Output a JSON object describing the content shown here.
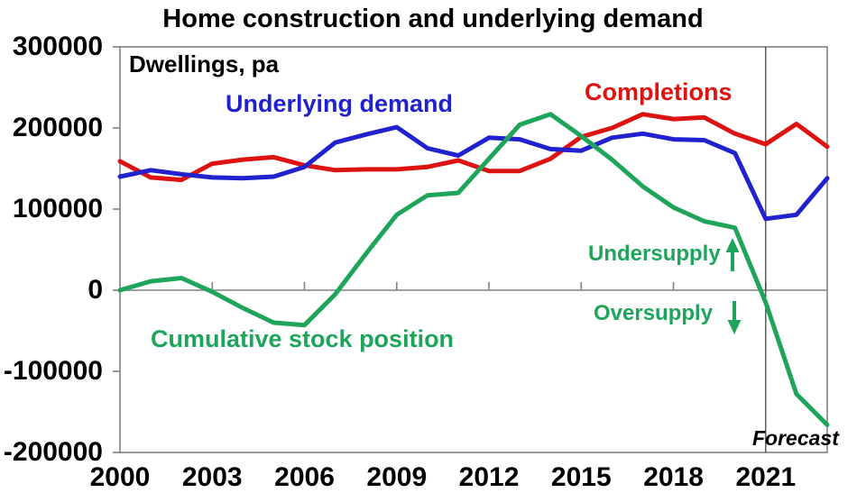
{
  "title": "Home construction and underlying demand",
  "colors": {
    "axis": "#808080",
    "forecast_line": "#333333",
    "demand_blue": "#2121cd",
    "completions_red": "#dd1312",
    "stock_green": "#1fa45b"
  },
  "chart_data": {
    "type": "line",
    "title": "Home construction and underlying demand",
    "ylabel": "Dwellings, pa",
    "xlabel": "",
    "xlim": [
      2000,
      2023
    ],
    "ylim": [
      -200000,
      300000
    ],
    "xticks": [
      2000,
      2003,
      2006,
      2009,
      2012,
      2015,
      2018,
      2021
    ],
    "yticks": [
      300000,
      200000,
      100000,
      0,
      -100000,
      -200000
    ],
    "grid": "zero line only, full plot border box",
    "legend": "inline colored series labels",
    "forecast_line_year": 2021,
    "forecast_label": "Forecast",
    "x": [
      2000,
      2001,
      2002,
      2003,
      2004,
      2005,
      2006,
      2007,
      2008,
      2009,
      2010,
      2011,
      2012,
      2013,
      2014,
      2015,
      2016,
      2017,
      2018,
      2019,
      2020,
      2021,
      2022,
      2023
    ],
    "series": [
      {
        "name": "Underlying demand",
        "color": "#2121cd",
        "values": [
          140000,
          148000,
          143000,
          139000,
          138000,
          140000,
          152000,
          182000,
          192000,
          201000,
          175000,
          166000,
          188000,
          186000,
          174000,
          172000,
          188000,
          193000,
          186000,
          185000,
          169000,
          88000,
          93000,
          138000
        ]
      },
      {
        "name": "Completions",
        "color": "#dd1312",
        "values": [
          159000,
          139000,
          136000,
          156000,
          161000,
          164000,
          154000,
          148000,
          149000,
          149000,
          152000,
          160000,
          147000,
          147000,
          162000,
          189000,
          200000,
          217000,
          211000,
          213000,
          193000,
          180000,
          205000,
          177000
        ]
      },
      {
        "name": "Cumulative stock position",
        "color": "#1fa45b",
        "values": [
          0,
          11000,
          15000,
          -2000,
          -22000,
          -40000,
          -43000,
          -5000,
          45000,
          93000,
          117000,
          120000,
          162000,
          204000,
          217000,
          190000,
          161000,
          128000,
          102000,
          85000,
          77000,
          -15000,
          -128000,
          -166000
        ]
      }
    ],
    "annotations": [
      {
        "text": "Undersupply",
        "arrow": "up",
        "color": "#1fa45b"
      },
      {
        "text": "Oversupply",
        "arrow": "down",
        "color": "#1fa45b"
      }
    ]
  }
}
